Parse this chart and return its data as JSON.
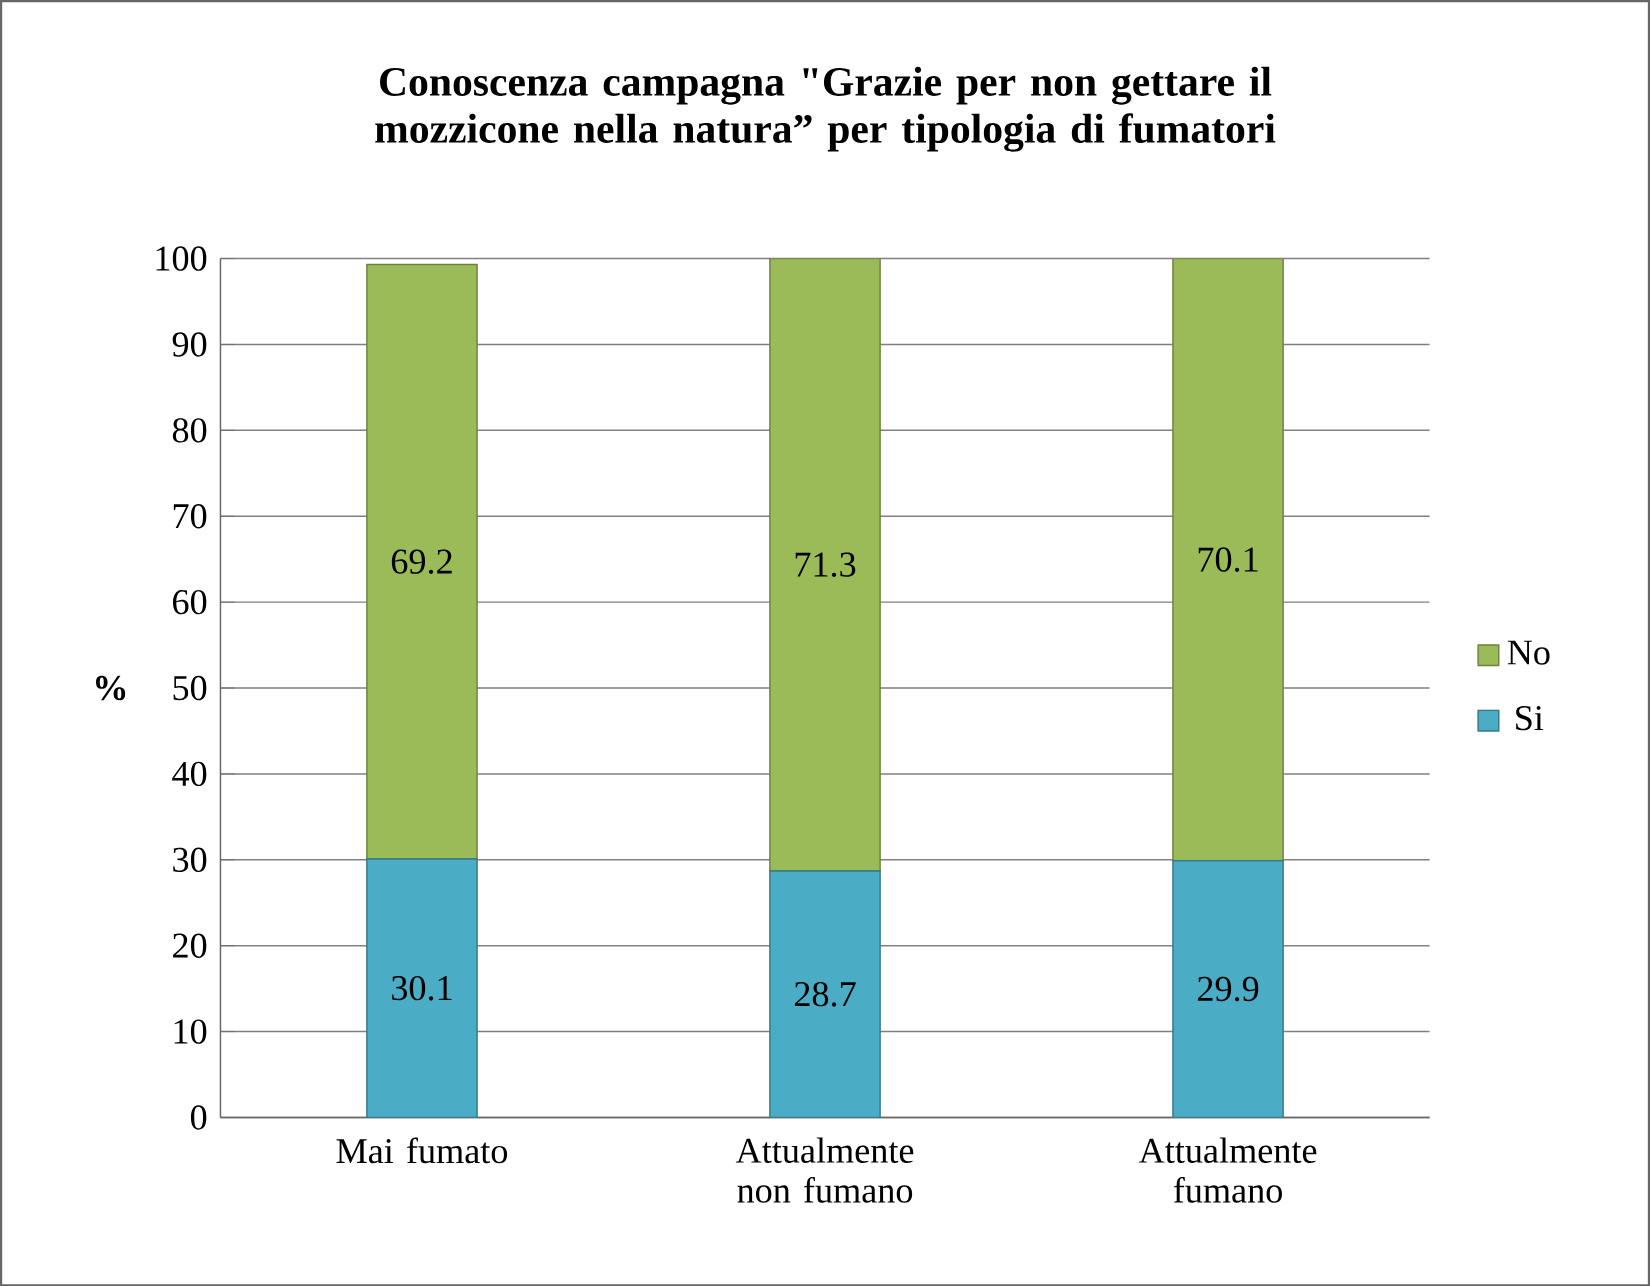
{
  "chart_data": {
    "type": "bar",
    "stacked": true,
    "title": "Conoscenza campagna \"Grazie per non gettare il mozzicone nella natura” per tipologia di fumatori",
    "ylabel": "%",
    "categories": [
      "Mai fumato",
      "Attualmente non fumano",
      "Attualmente fumano"
    ],
    "series": [
      {
        "name": "Si",
        "color": "#4bacc6",
        "values": [
          30.1,
          28.7,
          29.9
        ]
      },
      {
        "name": "No",
        "color": "#9bbb59",
        "values": [
          69.2,
          71.3,
          70.1
        ]
      }
    ],
    "ylim": [
      0,
      100
    ],
    "yticks": [
      0,
      10,
      20,
      30,
      40,
      50,
      60,
      70,
      80,
      90,
      100
    ],
    "grid": "y",
    "legend": "right",
    "data_labels": true
  }
}
